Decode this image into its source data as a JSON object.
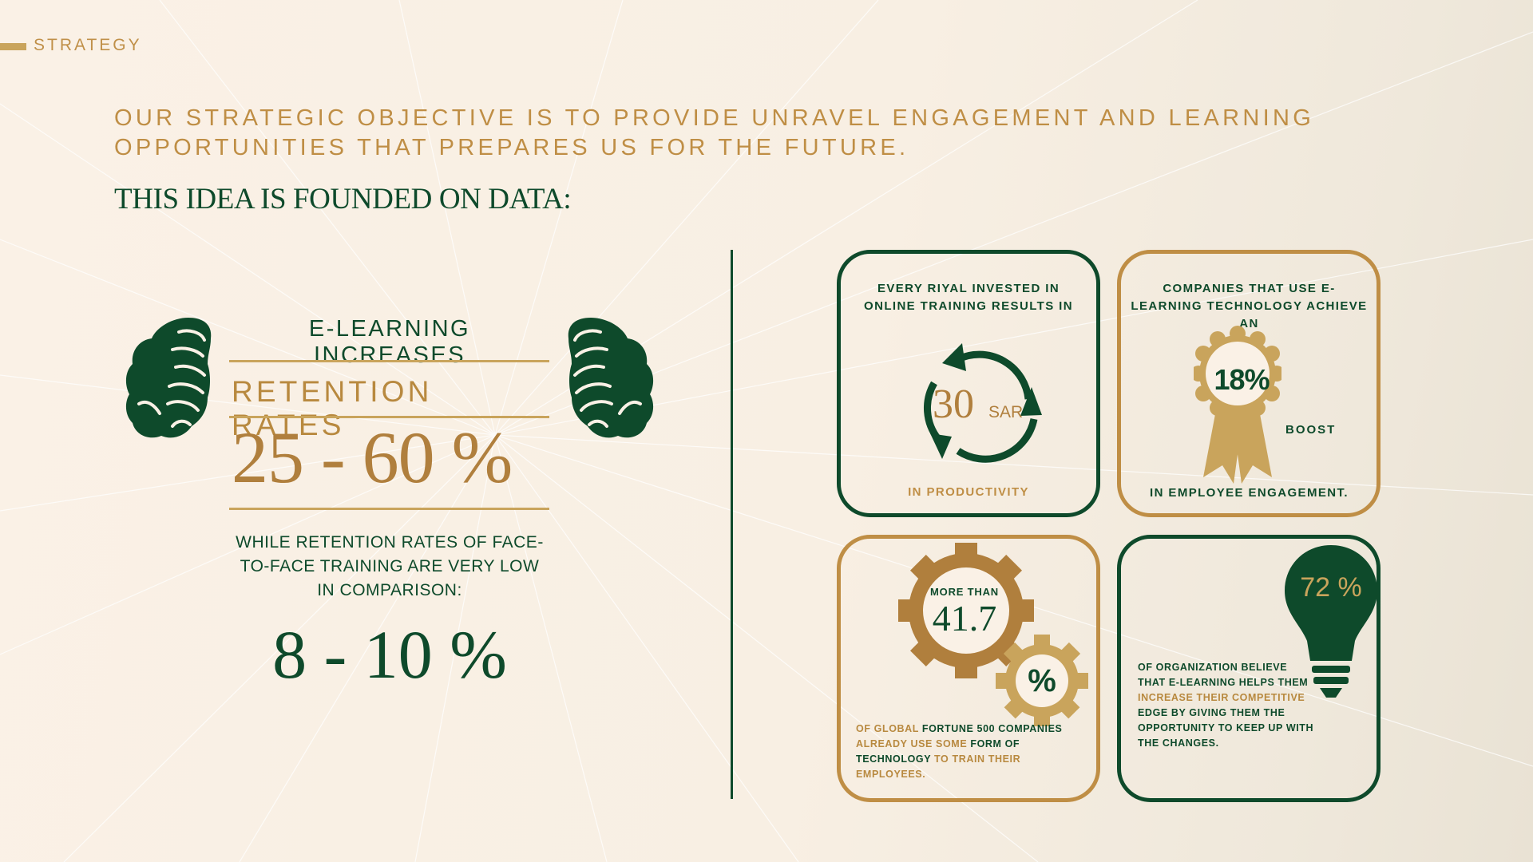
{
  "section": {
    "label": "STRATEGY"
  },
  "objective": "OUR STRATEGIC OBJECTIVE IS TO PROVIDE UNRAVEL ENGAGEMENT AND LEARNING OPPORTUNITIES THAT PREPARES US FOR THE FUTURE.",
  "founded": "THIS IDEA IS FOUNDED ON DATA:",
  "left": {
    "increases": "E-LEARNING INCREASES",
    "retention": "RETENTION RATES",
    "range": "25 - 60 %",
    "while": "WHILE RETENTION RATES OF FACE-TO-FACE TRAINING ARE VERY LOW IN COMPARISON:",
    "low_range": "8 - 10 %"
  },
  "card1": {
    "top": "EVERY RIYAL INVESTED IN ONLINE TRAINING RESULTS IN",
    "value": "30",
    "unit": "SAR",
    "bottom": "IN PRODUCTIVITY"
  },
  "card2": {
    "top": "COMPANIES THAT USE E-LEARNING TECHNOLOGY ACHIEVE AN",
    "value": "18%",
    "boost": "BOOST",
    "bottom": "IN EMPLOYEE ENGAGEMENT."
  },
  "card3": {
    "more_than": "MORE THAN",
    "value": "41.7",
    "pct": "%",
    "t1": "OF GLOBAL ",
    "t2": "FORTUNE 500 COMPANIES ",
    "t3": "ALREADY USE SOME ",
    "t4": "FORM OF TECHNOLOGY ",
    "t5": "TO TRAIN THEIR EMPLOYEES."
  },
  "card4": {
    "value": "72 %",
    "t1": "OF ORGANIZATION BELIEVE THAT E-LEARNING HELPS THEM ",
    "t2": "INCREASE THEIR COMPETITIVE ",
    "t3": "EDGE BY GIVING THEM THE OPPORTUNITY TO KEEP UP WITH THE CHANGES."
  },
  "colors": {
    "green": "#0e4a2b",
    "gold": "#bf8e45",
    "light_gold": "#c9a45c",
    "background": "#faf1e6"
  }
}
